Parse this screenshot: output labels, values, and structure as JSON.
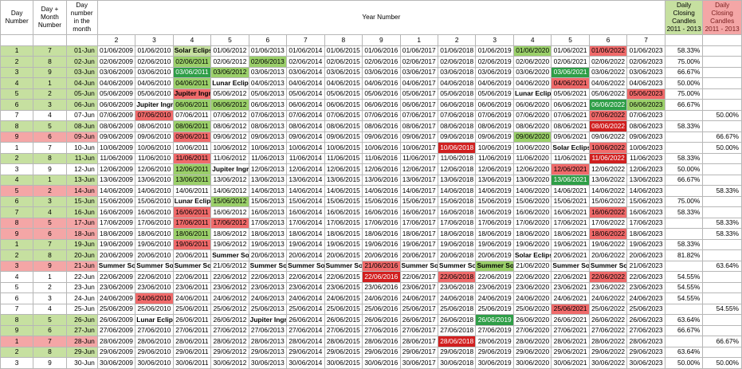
{
  "headers": {
    "day_number": "Day Number",
    "day_month_number": "Day + Month Number",
    "day_number_in_month": "Day number in the month",
    "year_number": "Year Number",
    "daily_closing_candles": "Daily Closing Candles 2011 - 2013",
    "daily_closing_candles_2": "Daily Closing Candles 2011 - 2013"
  },
  "year_numbers": [
    "2",
    "3",
    "4",
    "5",
    "6",
    "7",
    "8",
    "9",
    "1",
    "2",
    "3",
    "4",
    "5",
    "6",
    "7"
  ],
  "years": [
    "2009",
    "2010",
    "2011",
    "2012",
    "2013",
    "2014",
    "2015",
    "2016",
    "2017",
    "2018",
    "2019",
    "2020",
    "2021",
    "2022",
    "2023"
  ],
  "rows": [
    {
      "dn": "1",
      "dm": "7",
      "d": "01-Jun",
      "dd": "01",
      "ev": {
        "2": "Solar Eclipse"
      },
      "c": [
        "",
        "",
        "lg",
        "",
        "",
        "",
        "",
        "",
        "",
        "",
        "",
        "g",
        "",
        "r",
        ""
      ],
      "g": "58.33%",
      "p": "",
      "rowc": "lg"
    },
    {
      "dn": "2",
      "dm": "8",
      "d": "02-Jun",
      "dd": "02",
      "ev": {},
      "c": [
        "",
        "",
        "g",
        "",
        "g",
        "",
        "",
        "",
        "",
        "",
        "",
        "",
        "",
        "",
        ""
      ],
      "g": "75.00%",
      "p": "",
      "rowc": "lg"
    },
    {
      "dn": "3",
      "dm": "9",
      "d": "03-Jun",
      "dd": "03",
      "ev": {},
      "c": [
        "",
        "",
        "dg",
        "g",
        "",
        "",
        "",
        "",
        "",
        "",
        "",
        "",
        "dg",
        "",
        ""
      ],
      "g": "66.67%",
      "p": "",
      "rowc": "lg"
    },
    {
      "dn": "4",
      "dm": "1",
      "d": "04-Jun",
      "dd": "04",
      "ev": {
        "3": "Lunar Eclipse"
      },
      "c": [
        "",
        "",
        "g",
        "",
        "",
        "",
        "",
        "",
        "",
        "",
        "",
        "",
        "r",
        "",
        ""
      ],
      "g": "50.00%",
      "p": "",
      "rowc": "lg"
    },
    {
      "dn": "5",
      "dm": "2",
      "d": "05-Jun",
      "dd": "05",
      "ev": {
        "2": "Jupiter Ingress",
        "11": "Lunar Eclipse"
      },
      "c": [
        "",
        "",
        "r",
        "",
        "",
        "",
        "",
        "",
        "",
        "",
        "",
        "",
        "",
        "",
        "r"
      ],
      "g": "75.00%",
      "p": "",
      "rowc": "lg"
    },
    {
      "dn": "6",
      "dm": "3",
      "d": "06-Jun",
      "dd": "06",
      "ev": {
        "1": "Jupiter Ingress"
      },
      "c": [
        "",
        "",
        "g",
        "g",
        "",
        "",
        "",
        "",
        "",
        "",
        "",
        "",
        "",
        "dg",
        "g"
      ],
      "g": "66.67%",
      "p": "",
      "rowc": "lg"
    },
    {
      "dn": "7",
      "dm": "4",
      "d": "07-Jun",
      "dd": "07",
      "ev": {},
      "c": [
        "",
        "r",
        "",
        "",
        "",
        "",
        "",
        "",
        "",
        "",
        "",
        "",
        "",
        "r",
        ""
      ],
      "g": "",
      "p": "50.00%",
      "rowc": "w"
    },
    {
      "dn": "8",
      "dm": "5",
      "d": "08-Jun",
      "dd": "08",
      "ev": {},
      "c": [
        "",
        "",
        "g",
        "",
        "",
        "",
        "",
        "",
        "",
        "",
        "",
        "",
        "",
        "dr",
        ""
      ],
      "g": "58.33%",
      "p": "",
      "rowc": "lg"
    },
    {
      "dn": "9",
      "dm": "6",
      "d": "09-Jun",
      "dd": "09",
      "ev": {},
      "c": [
        "",
        "",
        "r",
        "",
        "",
        "",
        "",
        "",
        "",
        "",
        "",
        "g",
        "",
        "",
        ""
      ],
      "g": "",
      "p": "66.67%",
      "rowc": "p"
    },
    {
      "dn": "1",
      "dm": "7",
      "d": "10-Jun",
      "dd": "10",
      "ev": {
        "12": "Solar Eclipse"
      },
      "c": [
        "",
        "",
        "",
        "",
        "",
        "",
        "",
        "",
        "",
        "dr",
        "",
        "",
        "",
        "r",
        ""
      ],
      "g": "",
      "p": "50.00%",
      "rowc": "w"
    },
    {
      "dn": "2",
      "dm": "8",
      "d": "11-Jun",
      "dd": "11",
      "ev": {},
      "c": [
        "",
        "",
        "r",
        "",
        "",
        "",
        "",
        "",
        "",
        "",
        "",
        "",
        "",
        "dr",
        ""
      ],
      "g": "58.33%",
      "p": "",
      "rowc": "lg"
    },
    {
      "dn": "3",
      "dm": "9",
      "d": "12-Jun",
      "dd": "12",
      "ev": {
        "3": "Jupiter Ingress"
      },
      "c": [
        "",
        "",
        "g",
        "",
        "",
        "",
        "",
        "",
        "",
        "",
        "",
        "",
        "r",
        "",
        ""
      ],
      "g": "50.00%",
      "p": "",
      "rowc": "w"
    },
    {
      "dn": "4",
      "dm": "1",
      "d": "13-Jun",
      "dd": "13",
      "ev": {},
      "c": [
        "",
        "",
        "g",
        "",
        "",
        "",
        "",
        "",
        "",
        "",
        "",
        "",
        "dg",
        "",
        ""
      ],
      "g": "66.67%",
      "p": "",
      "rowc": "lg"
    },
    {
      "dn": "5",
      "dm": "2",
      "d": "14-Jun",
      "dd": "14",
      "ev": {},
      "c": [
        "",
        "",
        "",
        "",
        "",
        "",
        "",
        "",
        "",
        "",
        "",
        "",
        "",
        "",
        ""
      ],
      "g": "",
      "p": "58.33%",
      "rowc": "p"
    },
    {
      "dn": "6",
      "dm": "3",
      "d": "15-Jun",
      "dd": "15",
      "ev": {
        "2": "Lunar Eclipse"
      },
      "c": [
        "",
        "",
        "",
        "g",
        "",
        "",
        "",
        "",
        "",
        "",
        "",
        "",
        "",
        "",
        ""
      ],
      "g": "75.00%",
      "p": "",
      "rowc": "lg"
    },
    {
      "dn": "7",
      "dm": "4",
      "d": "16-Jun",
      "dd": "16",
      "ev": {},
      "c": [
        "",
        "",
        "r",
        "",
        "",
        "",
        "",
        "",
        "",
        "",
        "",
        "",
        "",
        "r",
        ""
      ],
      "g": "58.33%",
      "p": "",
      "rowc": "lg"
    },
    {
      "dn": "8",
      "dm": "5",
      "d": "17-Jun",
      "dd": "17",
      "ev": {},
      "c": [
        "",
        "",
        "r",
        "r",
        "",
        "",
        "",
        "",
        "",
        "",
        "",
        "",
        "",
        "",
        ""
      ],
      "g": "",
      "p": "58.33%",
      "rowc": "p"
    },
    {
      "dn": "9",
      "dm": "6",
      "d": "18-Jun",
      "dd": "18",
      "ev": {},
      "c": [
        "",
        "",
        "g",
        "",
        "",
        "",
        "",
        "",
        "",
        "",
        "",
        "",
        "",
        "r",
        ""
      ],
      "g": "",
      "p": "58.33%",
      "rowc": "p"
    },
    {
      "dn": "1",
      "dm": "7",
      "d": "19-Jun",
      "dd": "19",
      "ev": {},
      "c": [
        "",
        "",
        "r",
        "",
        "",
        "",
        "",
        "",
        "",
        "",
        "",
        "",
        "",
        "",
        ""
      ],
      "g": "58.33%",
      "p": "",
      "rowc": "lg"
    },
    {
      "dn": "2",
      "dm": "8",
      "d": "20-Jun",
      "dd": "20",
      "ev": {
        "3": "Summer Solstice",
        "11": "Solar Eclipse"
      },
      "c": [
        "",
        "",
        "",
        "",
        "",
        "",
        "",
        "",
        "",
        "",
        "",
        "",
        "",
        "",
        ""
      ],
      "g": "81.82%",
      "p": "",
      "rowc": "lg"
    },
    {
      "dn": "3",
      "dm": "9",
      "d": "21-Jun",
      "dd": "21",
      "ev": {
        "0": "Summer Sol",
        "1": "Summer Sol",
        "2": "Summer Sol",
        "4": "Summer Sol",
        "5": "Summer Sol",
        "6": "Summer Sol",
        "7": "21/06/2016",
        "8": "Summer Sol",
        "9": "Summer Sol",
        "10": "Summer Sol",
        "12": "Summer Sol",
        "13": "Summer Solstice"
      },
      "c": [
        "",
        "",
        "",
        "",
        "",
        "",
        "",
        "r",
        "",
        "",
        "g",
        "",
        "",
        "",
        ""
      ],
      "g": "",
      "p": "63.64%",
      "rowc": "p"
    },
    {
      "dn": "4",
      "dm": "1",
      "d": "22-Jun",
      "dd": "22",
      "ev": {},
      "c": [
        "",
        "",
        "",
        "",
        "",
        "",
        "",
        "dr",
        "",
        "r",
        "",
        "",
        "",
        "r",
        ""
      ],
      "g": "54.55%",
      "p": "",
      "rowc": "w"
    },
    {
      "dn": "5",
      "dm": "2",
      "d": "23-Jun",
      "dd": "23",
      "ev": {},
      "c": [
        "",
        "",
        "",
        "",
        "",
        "",
        "",
        "",
        "",
        "",
        "",
        "",
        "",
        "",
        ""
      ],
      "g": "54.55%",
      "p": "",
      "rowc": "w"
    },
    {
      "dn": "6",
      "dm": "3",
      "d": "24-Jun",
      "dd": "24",
      "ev": {},
      "c": [
        "",
        "r",
        "",
        "",
        "",
        "",
        "",
        "",
        "",
        "",
        "",
        "",
        "",
        "",
        ""
      ],
      "g": "54.55%",
      "p": "",
      "rowc": "w"
    },
    {
      "dn": "7",
      "dm": "4",
      "d": "25-Jun",
      "dd": "25",
      "ev": {},
      "c": [
        "",
        "",
        "",
        "",
        "",
        "",
        "",
        "",
        "",
        "",
        "",
        "",
        "r",
        "",
        ""
      ],
      "g": "",
      "p": "54.55%",
      "rowc": "w"
    },
    {
      "dn": "8",
      "dm": "5",
      "d": "26-Jun",
      "dd": "26",
      "ev": {
        "1": "Lunar Eclipse",
        "4": "Jupiter Ingress"
      },
      "c": [
        "",
        "",
        "",
        "",
        "",
        "",
        "",
        "",
        "",
        "",
        "dg",
        "",
        "",
        "",
        ""
      ],
      "g": "63.64%",
      "p": "",
      "rowc": "lg"
    },
    {
      "dn": "9",
      "dm": "6",
      "d": "27-Jun",
      "dd": "27",
      "ev": {},
      "c": [
        "",
        "",
        "",
        "",
        "",
        "",
        "",
        "",
        "",
        "",
        "",
        "",
        "",
        "",
        ""
      ],
      "g": "66.67%",
      "p": "",
      "rowc": "lg"
    },
    {
      "dn": "1",
      "dm": "7",
      "d": "28-Jun",
      "dd": "28",
      "ev": {},
      "c": [
        "",
        "",
        "",
        "",
        "",
        "",
        "",
        "",
        "",
        "dr",
        "",
        "",
        "",
        "",
        ""
      ],
      "g": "",
      "p": "66.67%",
      "rowc": "p"
    },
    {
      "dn": "2",
      "dm": "8",
      "d": "29-Jun",
      "dd": "29",
      "ev": {},
      "c": [
        "",
        "",
        "",
        "",
        "",
        "",
        "",
        "",
        "",
        "",
        "",
        "",
        "",
        "",
        ""
      ],
      "g": "63.64%",
      "p": "",
      "rowc": "lg"
    },
    {
      "dn": "3",
      "dm": "9",
      "d": "30-Jun",
      "dd": "30",
      "ev": {},
      "c": [
        "",
        "",
        "",
        "",
        "",
        "",
        "",
        "",
        "",
        "",
        "",
        "",
        "",
        "",
        ""
      ],
      "g": "50.00%",
      "p": "50.00%",
      "rowc": "w"
    }
  ],
  "row_colors": {
    "1": [
      "",
      "g",
      "lg",
      "",
      "",
      "",
      "",
      "",
      "",
      "",
      "",
      "g",
      "",
      "dr",
      ""
    ],
    "2": [
      "",
      "",
      "g",
      "",
      "g",
      "g",
      "",
      "",
      "",
      "",
      "",
      "",
      "",
      "",
      ""
    ]
  }
}
